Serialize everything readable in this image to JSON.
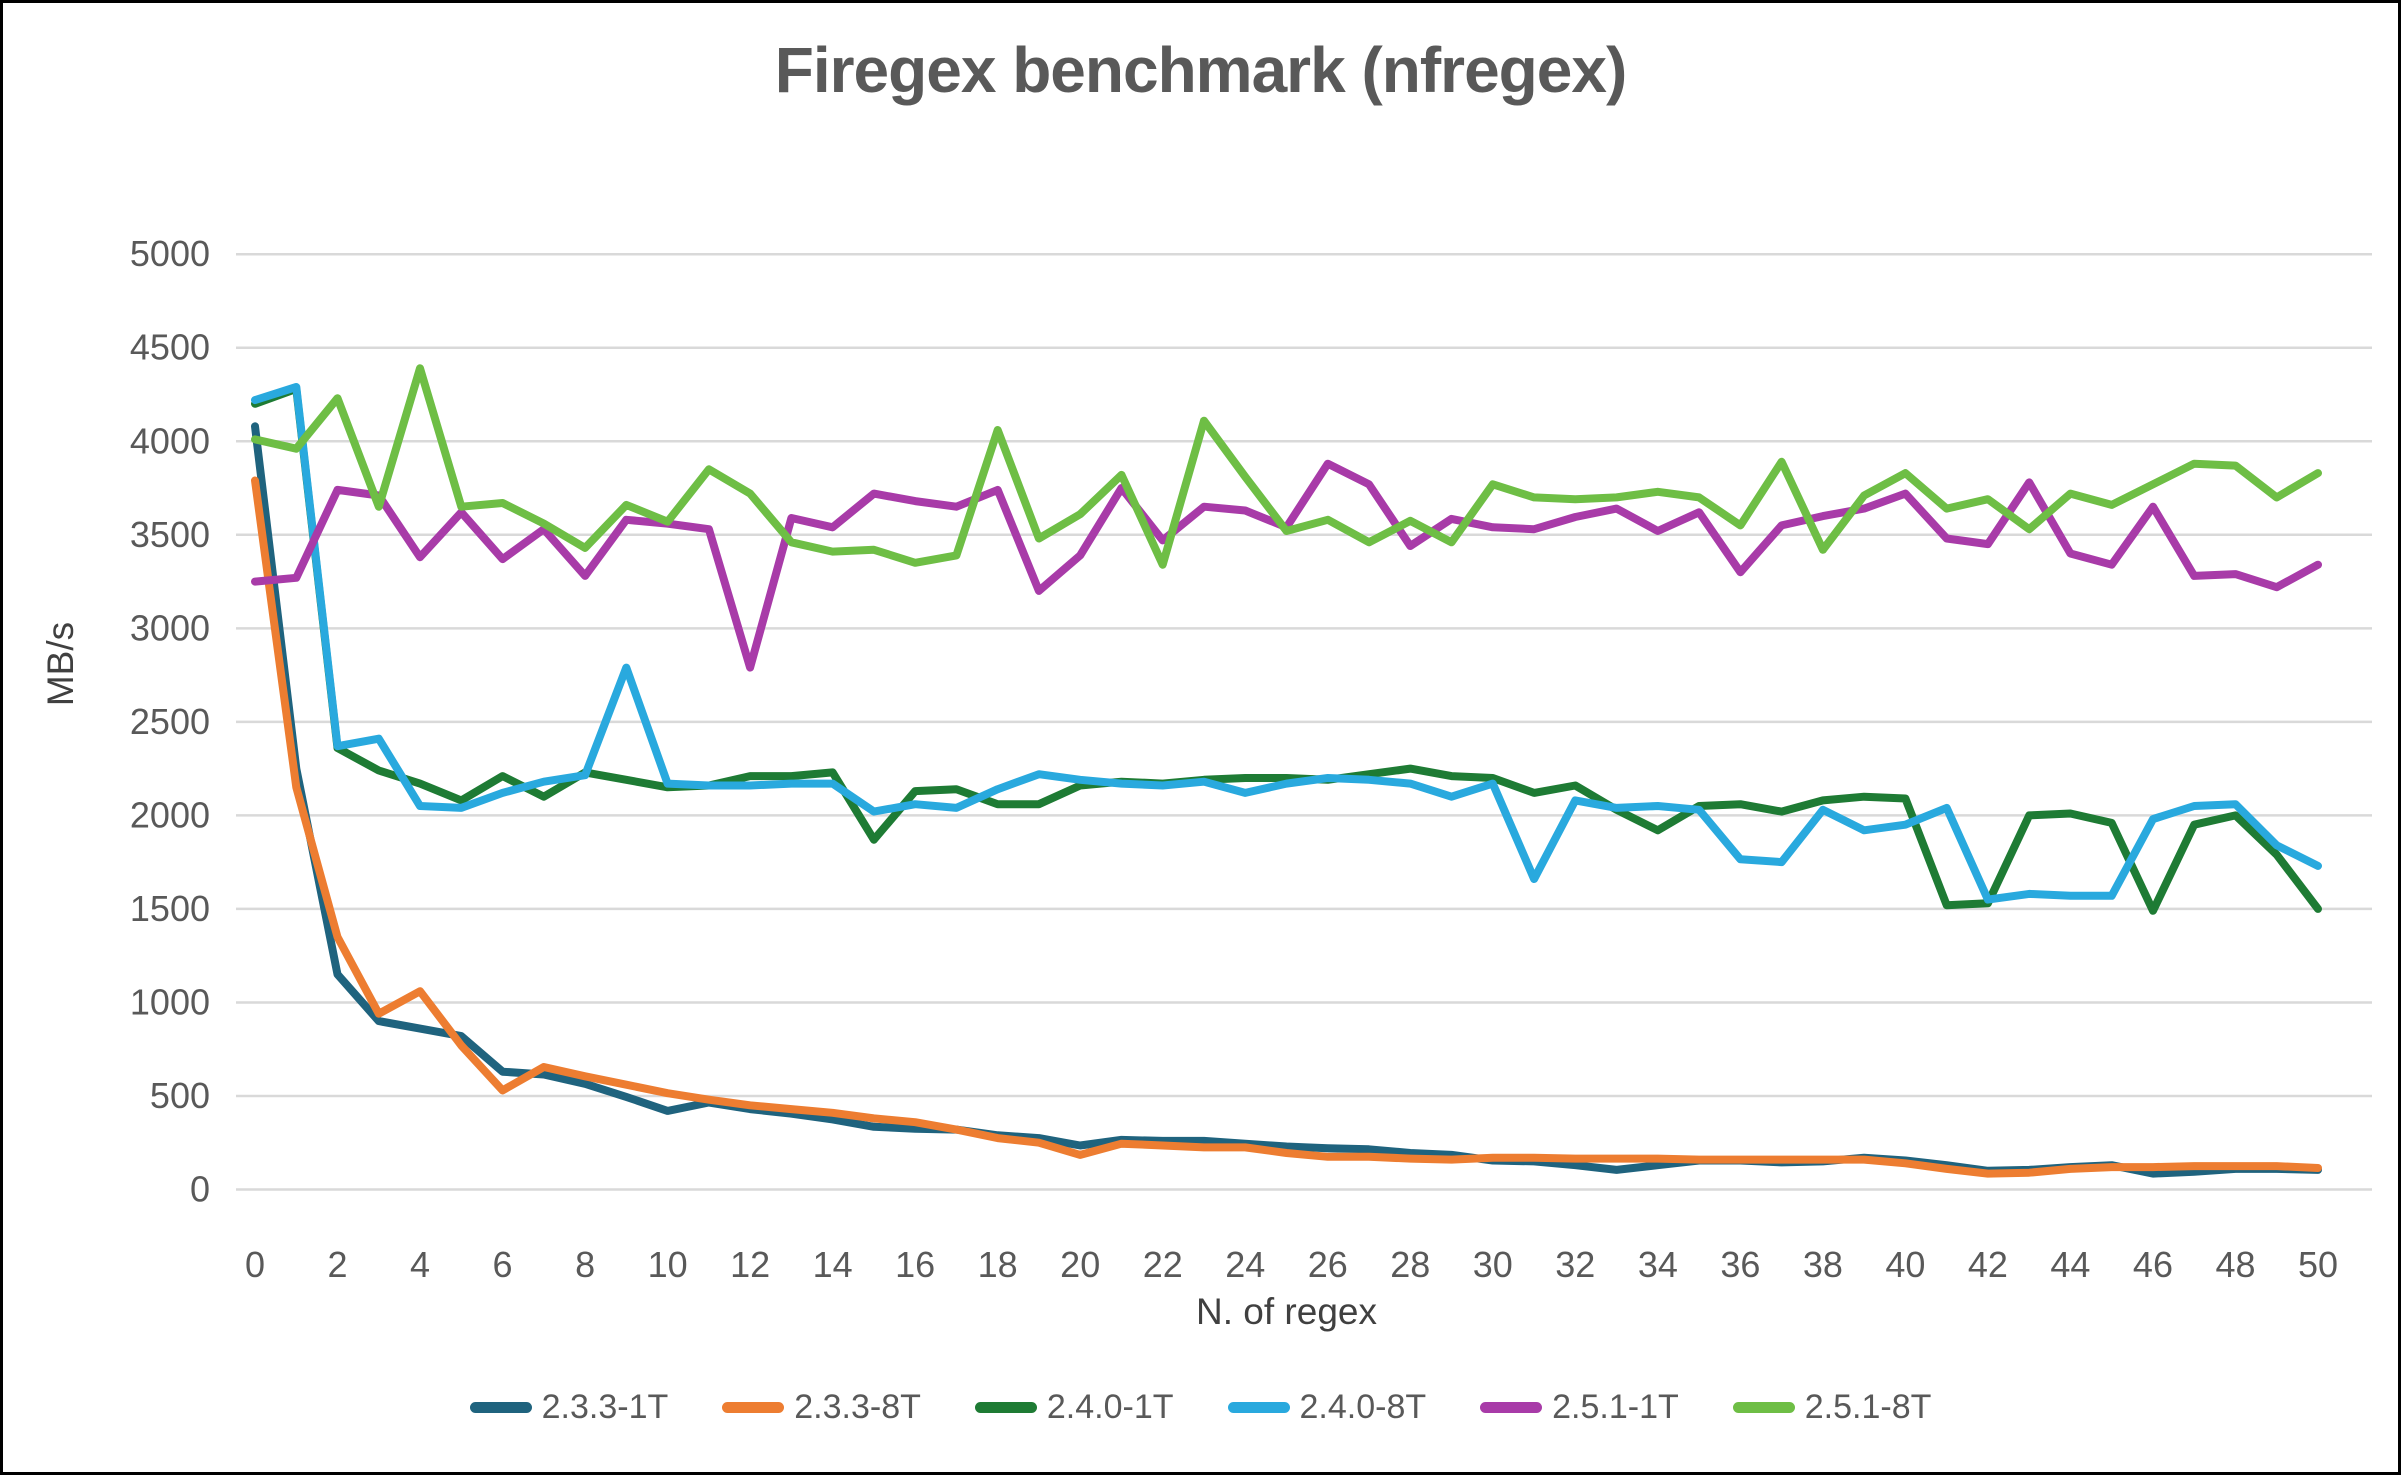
{
  "title": "Firegex benchmark (nfregex)",
  "colors": {
    "background": "#FFFFFF",
    "frame": "#000000",
    "gridline": "#D9D9D9",
    "tick_text": "#595959",
    "axis_title_text": "#404040",
    "title_text": "#595959"
  },
  "chart_data": {
    "type": "line",
    "title": "Firegex benchmark (nfregex)",
    "xlabel": "N. of regex",
    "ylabel": "MB/s",
    "x_start": 0,
    "x_step": 1,
    "x_max": 50,
    "xlim": [
      0,
      50
    ],
    "ylim": [
      0,
      5000
    ],
    "y_ticks": [
      0,
      500,
      1000,
      1500,
      2000,
      2500,
      3000,
      3500,
      4000,
      4500,
      5000
    ],
    "x_ticks": [
      0,
      2,
      4,
      6,
      8,
      10,
      12,
      14,
      16,
      18,
      20,
      22,
      24,
      26,
      28,
      30,
      32,
      34,
      36,
      38,
      40,
      42,
      44,
      46,
      48,
      50
    ],
    "grid": "horizontal-only",
    "legend_position": "bottom",
    "series": [
      {
        "name": "2.3.3-1T",
        "color": "#1F637E",
        "values": [
          4080,
          2250,
          1150,
          900,
          860,
          820,
          630,
          615,
          565,
          495,
          420,
          465,
          430,
          405,
          375,
          335,
          325,
          320,
          290,
          275,
          235,
          265,
          260,
          260,
          245,
          230,
          220,
          215,
          195,
          185,
          155,
          150,
          130,
          105,
          130,
          155,
          155,
          145,
          150,
          170,
          155,
          130,
          100,
          105,
          120,
          130,
          85,
          95,
          110,
          110,
          105
        ]
      },
      {
        "name": "2.3.3-8T",
        "color": "#ED7D31",
        "values": [
          3790,
          2150,
          1350,
          940,
          1060,
          770,
          530,
          655,
          605,
          560,
          515,
          480,
          450,
          430,
          410,
          380,
          360,
          320,
          275,
          250,
          185,
          245,
          235,
          225,
          225,
          195,
          175,
          175,
          165,
          160,
          170,
          170,
          165,
          165,
          165,
          160,
          160,
          160,
          160,
          160,
          140,
          110,
          85,
          90,
          110,
          120,
          120,
          125,
          125,
          125,
          115
        ]
      },
      {
        "name": "2.4.0-1T",
        "color": "#1E7B34",
        "values": [
          4200,
          4280,
          2360,
          2240,
          2170,
          2080,
          2210,
          2100,
          2230,
          2190,
          2150,
          2160,
          2210,
          2210,
          2230,
          1870,
          2130,
          2140,
          2060,
          2060,
          2160,
          2180,
          2170,
          2190,
          2200,
          2200,
          2190,
          2220,
          2250,
          2210,
          2200,
          2120,
          2160,
          2030,
          1920,
          2050,
          2060,
          2020,
          2080,
          2100,
          2090,
          1520,
          1530,
          2000,
          2010,
          1960,
          1490,
          1950,
          2000,
          1790,
          1500
        ]
      },
      {
        "name": "2.4.0-8T",
        "color": "#29A9DE",
        "values": [
          4220,
          4290,
          2370,
          2410,
          2050,
          2040,
          2120,
          2180,
          2215,
          2790,
          2170,
          2160,
          2160,
          2170,
          2170,
          2020,
          2060,
          2040,
          2140,
          2220,
          2190,
          2170,
          2160,
          2180,
          2120,
          2170,
          2200,
          2190,
          2170,
          2100,
          2170,
          1660,
          2080,
          2040,
          2050,
          2030,
          1765,
          1750,
          2030,
          1920,
          1950,
          2040,
          1550,
          1580,
          1570,
          1570,
          1980,
          2050,
          2060,
          1840,
          1730
        ]
      },
      {
        "name": "2.5.1-1T",
        "color": "#A83BA8",
        "values": [
          3250,
          3270,
          3740,
          3710,
          3380,
          3620,
          3370,
          3530,
          3280,
          3580,
          3560,
          3530,
          2790,
          3590,
          3540,
          3720,
          3680,
          3650,
          3740,
          3200,
          3390,
          3750,
          3470,
          3650,
          3630,
          3540,
          3880,
          3770,
          3440,
          3585,
          3540,
          3530,
          3595,
          3640,
          3520,
          3620,
          3300,
          3550,
          3600,
          3640,
          3720,
          3480,
          3450,
          3780,
          3400,
          3340,
          3650,
          3280,
          3290,
          3220,
          3340
        ]
      },
      {
        "name": "2.5.1-8T",
        "color": "#6EBE45",
        "values": [
          4010,
          3960,
          4230,
          3650,
          4390,
          3650,
          3670,
          3560,
          3430,
          3660,
          3570,
          3850,
          3720,
          3460,
          3410,
          3420,
          3350,
          3390,
          4060,
          3480,
          3610,
          3820,
          3340,
          4110,
          3810,
          3520,
          3580,
          3460,
          3575,
          3460,
          3770,
          3700,
          3690,
          3700,
          3730,
          3700,
          3550,
          3890,
          3420,
          3710,
          3830,
          3640,
          3690,
          3530,
          3720,
          3660,
          3770,
          3880,
          3870,
          3700,
          3830
        ]
      }
    ]
  }
}
